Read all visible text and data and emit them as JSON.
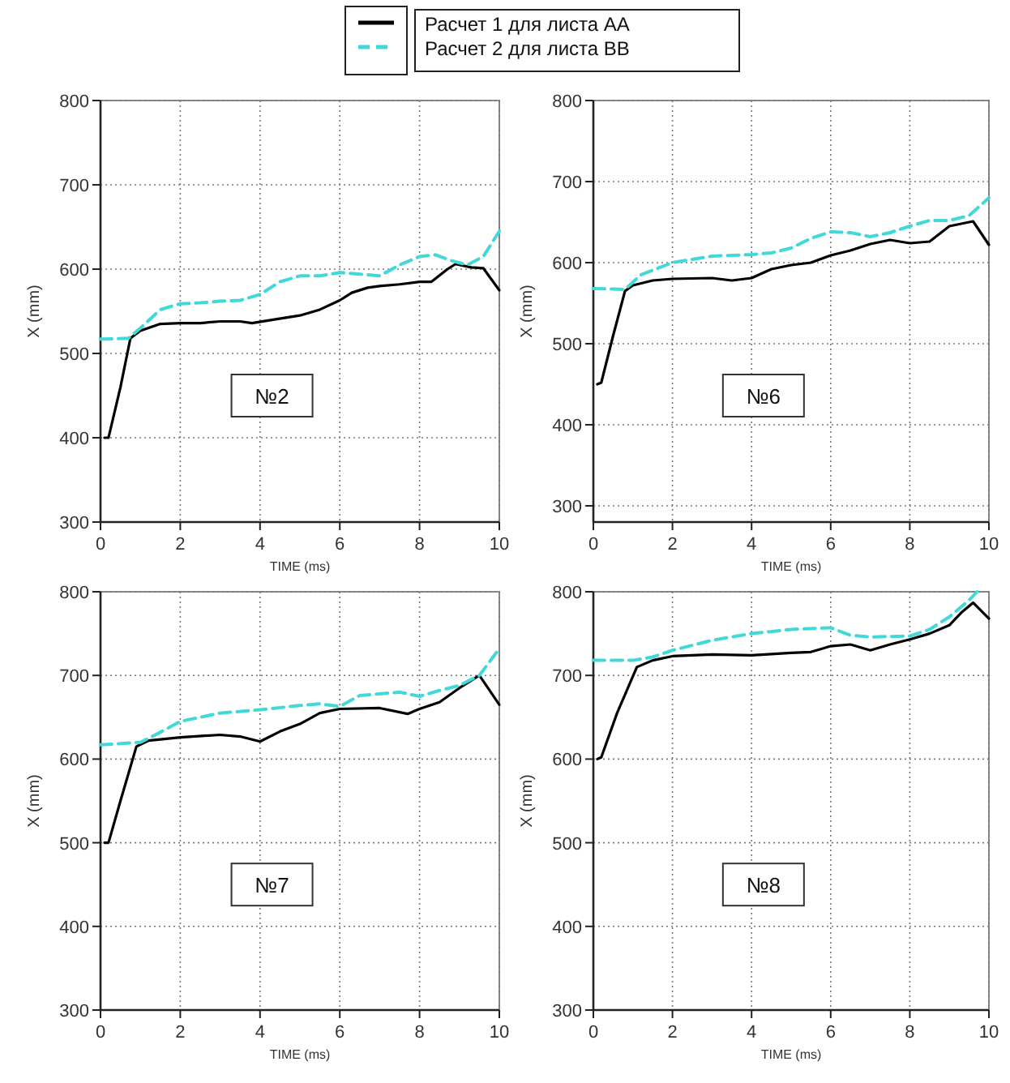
{
  "chart_data": [
    {
      "type": "line",
      "xlabel": "TIME (ms)",
      "ylabel": "X (mm)",
      "annotations": [
        "№2"
      ],
      "xlim": [
        0,
        10
      ],
      "xticks": [
        0,
        2,
        4,
        6,
        8,
        10
      ],
      "ylim": [
        300,
        800
      ],
      "yticks": [
        300,
        400,
        500,
        600,
        700,
        800
      ],
      "grid": true,
      "legend": "top",
      "series": [
        {
          "name": "Расчет 1 для листа АА",
          "color": "#000000",
          "line_style": "solid",
          "x": [
            0.1,
            0.2,
            0.5,
            0.75,
            1,
            1.5,
            2,
            2.5,
            3,
            3.5,
            3.8,
            4.2,
            5,
            5.5,
            6,
            6.3,
            6.7,
            7,
            7.5,
            8,
            8.3,
            8.7,
            8.9,
            9.3,
            9.6,
            10
          ],
          "values": [
            400,
            400,
            460,
            518,
            527,
            535,
            536,
            536,
            538,
            538,
            536,
            539,
            545,
            552,
            563,
            572,
            578,
            580,
            582,
            585,
            585,
            600,
            606,
            602,
            601,
            575
          ]
        },
        {
          "name": "Расчет 2 для листа ВВ",
          "color": "#40d8d8",
          "line_style": "dashed",
          "x": [
            0,
            0.7,
            1,
            1.5,
            2,
            2.5,
            3,
            3.5,
            4,
            4.5,
            5,
            5.5,
            6,
            6.5,
            7,
            7.5,
            8,
            8.4,
            8.8,
            9.2,
            9.6,
            10
          ],
          "values": [
            517,
            518,
            530,
            552,
            559,
            560,
            562,
            563,
            570,
            585,
            592,
            592,
            596,
            594,
            592,
            605,
            615,
            617,
            610,
            605,
            615,
            645
          ]
        }
      ]
    },
    {
      "type": "line",
      "xlabel": "TIME (ms)",
      "ylabel": "X (mm)",
      "annotations": [
        "№6"
      ],
      "xlim": [
        0,
        10
      ],
      "xticks": [
        0,
        2,
        4,
        6,
        8,
        10
      ],
      "ylim": [
        280,
        800
      ],
      "yticks": [
        300,
        400,
        500,
        600,
        700,
        800
      ],
      "grid": true,
      "series": [
        {
          "color": "#000000",
          "line_style": "solid",
          "x": [
            0.1,
            0.2,
            0.5,
            0.8,
            1,
            1.5,
            2,
            3,
            3.5,
            4,
            4.5,
            5,
            5.5,
            6,
            6.5,
            7,
            7.5,
            8,
            8.5,
            9,
            9.3,
            9.6,
            10
          ],
          "values": [
            450,
            452,
            510,
            565,
            572,
            578,
            580,
            581,
            578,
            581,
            592,
            597,
            600,
            609,
            615,
            623,
            628,
            624,
            626,
            645,
            648,
            651,
            622
          ]
        },
        {
          "color": "#40d8d8",
          "line_style": "dashed",
          "x": [
            0,
            0.8,
            1.2,
            2,
            3,
            4,
            4.5,
            5,
            5.5,
            6,
            6.5,
            7,
            7.5,
            8,
            8.5,
            9,
            9.5,
            10
          ],
          "values": [
            568,
            567,
            585,
            600,
            608,
            610,
            612,
            618,
            630,
            638,
            637,
            632,
            637,
            645,
            652,
            652,
            658,
            680
          ]
        }
      ]
    },
    {
      "type": "line",
      "xlabel": "TIME (ms)",
      "ylabel": "X (mm)",
      "annotations": [
        "№7"
      ],
      "xlim": [
        0,
        10
      ],
      "xticks": [
        0,
        2,
        4,
        6,
        8,
        10
      ],
      "ylim": [
        300,
        800
      ],
      "yticks": [
        300,
        400,
        500,
        600,
        700,
        800
      ],
      "grid": true,
      "series": [
        {
          "color": "#000000",
          "line_style": "solid",
          "x": [
            0.1,
            0.2,
            0.5,
            0.9,
            1.2,
            2,
            3,
            3.5,
            4,
            4.5,
            5,
            5.5,
            6,
            7,
            7.7,
            8,
            8.5,
            9,
            9.5,
            10
          ],
          "values": [
            500,
            500,
            550,
            615,
            622,
            626,
            629,
            627,
            621,
            633,
            642,
            655,
            660,
            661,
            654,
            660,
            668,
            685,
            700,
            665
          ]
        },
        {
          "color": "#40d8d8",
          "line_style": "dashed",
          "x": [
            0,
            1,
            1.5,
            2,
            3,
            4,
            5,
            5.5,
            6,
            6.5,
            7,
            7.5,
            8,
            8.5,
            9,
            9.5,
            10
          ],
          "values": [
            617,
            620,
            632,
            645,
            655,
            659,
            664,
            666,
            663,
            676,
            678,
            680,
            675,
            682,
            688,
            700,
            732
          ]
        }
      ]
    },
    {
      "type": "line",
      "xlabel": "TIME (ms)",
      "ylabel": "X (mm)",
      "annotations": [
        "№8"
      ],
      "xlim": [
        0,
        10
      ],
      "xticks": [
        0,
        2,
        4,
        6,
        8,
        10
      ],
      "ylim": [
        300,
        800
      ],
      "yticks": [
        300,
        400,
        500,
        600,
        700,
        800
      ],
      "grid": true,
      "series": [
        {
          "color": "#000000",
          "line_style": "solid",
          "x": [
            0.1,
            0.2,
            0.6,
            1.1,
            1.5,
            2,
            3,
            4,
            5,
            5.5,
            6,
            6.5,
            7,
            7.5,
            8,
            8.5,
            9,
            9.3,
            9.6,
            10
          ],
          "values": [
            600,
            602,
            655,
            710,
            718,
            723,
            725,
            724,
            727,
            728,
            735,
            737,
            730,
            737,
            743,
            750,
            760,
            775,
            787,
            768
          ]
        },
        {
          "color": "#40d8d8",
          "line_style": "dashed",
          "x": [
            0,
            1,
            1.5,
            2,
            3,
            4,
            5,
            6,
            6.5,
            7,
            8,
            8.5,
            9,
            9.5,
            9.7
          ],
          "values": [
            718,
            718,
            722,
            730,
            742,
            750,
            755,
            757,
            748,
            746,
            747,
            755,
            770,
            790,
            800
          ]
        }
      ]
    }
  ]
}
